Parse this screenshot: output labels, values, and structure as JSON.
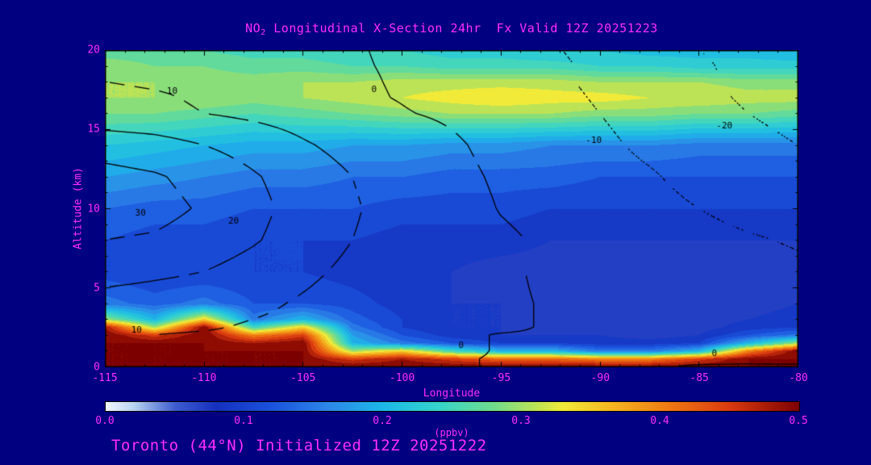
{
  "header": {
    "title_pre": "NO",
    "title_sub": "2",
    "title_rest": " Longitudinal X-Section 24hr  Fx Valid 12Z 20251223"
  },
  "footer": {
    "text": "Toronto (44°N) Initialized 12Z 20251222"
  },
  "colors": {
    "background": "#000080",
    "accent_text": "#ff2dff",
    "axis": "#000000",
    "contour_lines": "#000000"
  },
  "chart_data": {
    "type": "heatmap",
    "title": "NO2 Longitudinal X-Section 24hr  Fx Valid 12Z 20251223",
    "subtitle": "Toronto (44°N) Initialized 12Z 20251222",
    "xlabel": "Longitude",
    "ylabel": "Altitude (km)",
    "units_label": "(ppbv)",
    "x_range": [
      -115,
      -80
    ],
    "y_range": [
      0,
      20
    ],
    "x_ticks": [
      -115,
      -110,
      -105,
      -100,
      -95,
      -90,
      -85,
      -80
    ],
    "x_minor_step": 1,
    "y_ticks": [
      0,
      5,
      10,
      15,
      20
    ],
    "y_minor_step": 1,
    "grid": false,
    "colorbar": {
      "min": 0.0,
      "max": 0.5,
      "ticks": [
        0.0,
        0.1,
        0.2,
        0.3,
        0.4,
        0.5
      ],
      "tick_labels": [
        "0.0",
        "0.1",
        "0.2",
        "0.3",
        "0.4",
        "0.5"
      ]
    },
    "colormap": [
      {
        "v": 0.0,
        "c": "#f2f7ff"
      },
      {
        "v": 0.02,
        "c": "#b8d4f0"
      },
      {
        "v": 0.05,
        "c": "#3e5cd0"
      },
      {
        "v": 0.08,
        "c": "#1530be"
      },
      {
        "v": 0.12,
        "c": "#1a52de"
      },
      {
        "v": 0.16,
        "c": "#2d86e8"
      },
      {
        "v": 0.2,
        "c": "#1cb8e8"
      },
      {
        "v": 0.24,
        "c": "#35d4cc"
      },
      {
        "v": 0.28,
        "c": "#6fdc8c"
      },
      {
        "v": 0.31,
        "c": "#bce356"
      },
      {
        "v": 0.33,
        "c": "#f2ea38"
      },
      {
        "v": 0.37,
        "c": "#f4af1e"
      },
      {
        "v": 0.41,
        "c": "#ee7312"
      },
      {
        "v": 0.45,
        "c": "#d93a10"
      },
      {
        "v": 0.5,
        "c": "#7d0000"
      }
    ],
    "fill_band_step": 0.02,
    "field": {
      "name": "NO2 concentration (ppbv)",
      "lons": [
        -115,
        -112.5,
        -110,
        -107.5,
        -105,
        -102.5,
        -100,
        -97.5,
        -95,
        -92.5,
        -90,
        -87.5,
        -85,
        -82.5,
        -80
      ],
      "alts": [
        0,
        0.5,
        1,
        1.5,
        2,
        2.5,
        3,
        4,
        6,
        8,
        10,
        12,
        14,
        16,
        17,
        18,
        19,
        20
      ],
      "values_by_lon": [
        [
          0.5,
          0.5,
          0.5,
          0.5,
          0.5,
          0.48,
          0.3,
          0.15,
          0.11,
          0.12,
          0.14,
          0.18,
          0.22,
          0.28,
          0.3,
          0.3,
          0.29,
          0.27
        ],
        [
          0.5,
          0.5,
          0.5,
          0.5,
          0.45,
          0.3,
          0.2,
          0.13,
          0.1,
          0.11,
          0.13,
          0.17,
          0.21,
          0.28,
          0.3,
          0.3,
          0.28,
          0.27
        ],
        [
          0.5,
          0.5,
          0.5,
          0.5,
          0.5,
          0.5,
          0.35,
          0.15,
          0.1,
          0.11,
          0.13,
          0.16,
          0.2,
          0.27,
          0.3,
          0.29,
          0.28,
          0.26
        ],
        [
          0.5,
          0.5,
          0.5,
          0.48,
          0.4,
          0.25,
          0.15,
          0.12,
          0.1,
          0.1,
          0.12,
          0.15,
          0.19,
          0.26,
          0.29,
          0.29,
          0.27,
          0.25
        ],
        [
          0.5,
          0.5,
          0.5,
          0.5,
          0.45,
          0.35,
          0.2,
          0.12,
          0.1,
          0.1,
          0.12,
          0.15,
          0.19,
          0.27,
          0.3,
          0.3,
          0.27,
          0.25
        ],
        [
          0.5,
          0.45,
          0.3,
          0.2,
          0.18,
          0.15,
          0.13,
          0.11,
          0.09,
          0.1,
          0.12,
          0.14,
          0.18,
          0.28,
          0.31,
          0.3,
          0.26,
          0.24
        ],
        [
          0.5,
          0.48,
          0.35,
          0.15,
          0.12,
          0.1,
          0.1,
          0.09,
          0.08,
          0.09,
          0.11,
          0.14,
          0.18,
          0.29,
          0.32,
          0.31,
          0.26,
          0.24
        ],
        [
          0.5,
          0.45,
          0.25,
          0.12,
          0.09,
          0.08,
          0.08,
          0.08,
          0.08,
          0.09,
          0.11,
          0.13,
          0.17,
          0.3,
          0.33,
          0.31,
          0.25,
          0.23
        ],
        [
          0.5,
          0.42,
          0.2,
          0.1,
          0.08,
          0.08,
          0.08,
          0.08,
          0.07,
          0.09,
          0.11,
          0.13,
          0.17,
          0.3,
          0.34,
          0.31,
          0.25,
          0.23
        ],
        [
          0.5,
          0.42,
          0.2,
          0.1,
          0.08,
          0.07,
          0.07,
          0.07,
          0.07,
          0.08,
          0.1,
          0.13,
          0.16,
          0.3,
          0.33,
          0.31,
          0.25,
          0.22
        ],
        [
          0.5,
          0.4,
          0.15,
          0.09,
          0.08,
          0.07,
          0.07,
          0.07,
          0.07,
          0.08,
          0.1,
          0.12,
          0.16,
          0.29,
          0.33,
          0.3,
          0.24,
          0.22
        ],
        [
          0.5,
          0.4,
          0.15,
          0.09,
          0.07,
          0.07,
          0.07,
          0.07,
          0.07,
          0.08,
          0.1,
          0.12,
          0.16,
          0.29,
          0.32,
          0.3,
          0.24,
          0.21
        ],
        [
          0.5,
          0.45,
          0.2,
          0.1,
          0.08,
          0.07,
          0.07,
          0.07,
          0.07,
          0.08,
          0.1,
          0.12,
          0.15,
          0.28,
          0.32,
          0.3,
          0.23,
          0.21
        ],
        [
          0.5,
          0.5,
          0.4,
          0.2,
          0.12,
          0.09,
          0.08,
          0.07,
          0.07,
          0.08,
          0.1,
          0.12,
          0.15,
          0.28,
          0.31,
          0.29,
          0.23,
          0.21
        ],
        [
          0.5,
          0.5,
          0.5,
          0.3,
          0.15,
          0.1,
          0.09,
          0.08,
          0.07,
          0.08,
          0.1,
          0.12,
          0.15,
          0.27,
          0.31,
          0.29,
          0.23,
          0.2
        ]
      ]
    },
    "overlay_contours": {
      "levels": [
        -20,
        -10,
        0,
        10,
        20,
        30
      ],
      "negative_style": "dotted",
      "positive_style": "solid",
      "line_color": "#000000",
      "field": {
        "lons": [
          -115,
          -112.5,
          -110,
          -107.5,
          -105,
          -102.5,
          -100,
          -97.5,
          -95,
          -92.5,
          -90,
          -87.5,
          -85,
          -82.5,
          -80
        ],
        "alts": [
          0,
          0.5,
          1,
          1.5,
          2,
          2.5,
          3,
          4,
          6,
          8,
          10,
          12,
          14,
          16,
          17,
          18,
          19,
          20
        ],
        "values_by_lon": [
          [
            2,
            3,
            5,
            8,
            10,
            12,
            14,
            16,
            24,
            30,
            34,
            33,
            26,
            13,
            12,
            10,
            8,
            6
          ],
          [
            2,
            3,
            5,
            8,
            10,
            12,
            13,
            15,
            22,
            29,
            33,
            31,
            24,
            12,
            11,
            9,
            7,
            5
          ],
          [
            2,
            3,
            4,
            7,
            9,
            11,
            12,
            14,
            20,
            26,
            29,
            27,
            20,
            10,
            9,
            8,
            6,
            4
          ],
          [
            1,
            2,
            4,
            6,
            8,
            9,
            10,
            12,
            16,
            21,
            23,
            21,
            16,
            8,
            7,
            6,
            5,
            3
          ],
          [
            1,
            2,
            3,
            5,
            6,
            7,
            8,
            9,
            12,
            15,
            16,
            15,
            11,
            6,
            5,
            4,
            3,
            2
          ],
          [
            1,
            1,
            2,
            3,
            4,
            5,
            5,
            6,
            8,
            10,
            11,
            10,
            7,
            2,
            1,
            0.8,
            0.5,
            0.4
          ],
          [
            0.5,
            1,
            1,
            2,
            2,
            3,
            3,
            4,
            5,
            6,
            6,
            5,
            4,
            0.4,
            -0.3,
            -0.5,
            -0.6,
            -0.8
          ],
          [
            0.4,
            0.4,
            1,
            1,
            1,
            1,
            2,
            2,
            3,
            3,
            3,
            2,
            1,
            -1,
            -2,
            -2,
            -2.5,
            -3
          ],
          [
            -0.3,
            -0.3,
            -0.3,
            -0.3,
            -0.3,
            1,
            1,
            1,
            1,
            1,
            -0.3,
            -1,
            -2,
            -3,
            -4,
            -4,
            -5,
            -5
          ],
          [
            -0.5,
            -0.5,
            -0.5,
            -0.5,
            -0.5,
            -0.5,
            -0.5,
            -0.5,
            -1,
            -1,
            -2,
            -3,
            -4,
            -6,
            -7,
            -8,
            -8,
            -9
          ],
          [
            -0.3,
            -0.5,
            -0.5,
            -1,
            -1,
            -1,
            -1,
            -1,
            -2,
            -3,
            -4,
            -6,
            -8,
            -10,
            -11,
            -12,
            -12,
            -13
          ],
          [
            -0.3,
            -0.5,
            -1,
            -1,
            -1,
            -2,
            -2,
            -2,
            -3,
            -5,
            -7,
            -9,
            -12,
            -14,
            -15,
            -16,
            -16,
            -17
          ],
          [
            0.3,
            -1,
            -1,
            -2,
            -2,
            -2,
            -3,
            -3,
            -5,
            -7,
            -10,
            -13,
            -15,
            -17,
            -18,
            -19,
            -19,
            -20
          ],
          [
            0.5,
            -1,
            -2,
            -2,
            -3,
            -3,
            -4,
            -4,
            -6,
            -9,
            -13,
            -16,
            -18,
            -20,
            -21,
            -21,
            -22,
            -22
          ],
          [
            0.8,
            -2,
            -2,
            -3,
            -3,
            -4,
            -4,
            -5,
            -8,
            -11,
            -15,
            -18,
            -20,
            -22,
            -23,
            -23,
            -24,
            -24
          ]
        ]
      },
      "labels": [
        {
          "text": "10",
          "lon": -111.6,
          "alt": 17.4
        },
        {
          "text": "0",
          "lon": -101.4,
          "alt": 17.5
        },
        {
          "text": "-10",
          "lon": -90.3,
          "alt": 14.3
        },
        {
          "text": "-20",
          "lon": -83.7,
          "alt": 15.2
        },
        {
          "text": "30",
          "lon": -113.2,
          "alt": 9.7
        },
        {
          "text": "20",
          "lon": -108.5,
          "alt": 9.2
        },
        {
          "text": "10",
          "lon": -113.4,
          "alt": 2.3
        },
        {
          "text": "0",
          "lon": -97.0,
          "alt": 1.3
        },
        {
          "text": "0",
          "lon": -84.2,
          "alt": 0.8
        }
      ]
    }
  }
}
